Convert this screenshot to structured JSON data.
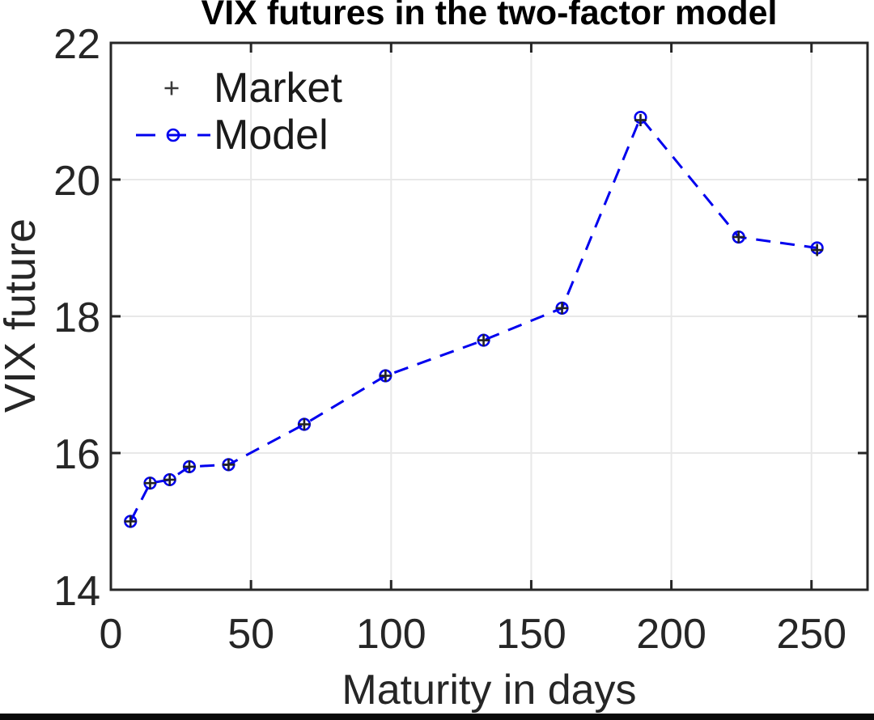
{
  "chart_data": {
    "type": "line",
    "title": "VIX futures in the two-factor model",
    "xlabel": "Maturity in days",
    "ylabel": "VIX future",
    "xlim": [
      0,
      270
    ],
    "ylim": [
      14,
      22
    ],
    "xticks": [
      0,
      50,
      100,
      150,
      200,
      250
    ],
    "yticks": [
      14,
      16,
      18,
      20,
      22
    ],
    "grid": true,
    "legend_position": "upper-left-inside",
    "x": [
      7,
      14,
      21,
      28,
      42,
      69,
      98,
      133,
      161,
      189,
      224,
      252
    ],
    "series": [
      {
        "name": "Market",
        "style": "scatter",
        "marker": "plus",
        "color": "#222222",
        "values": [
          15.0,
          15.56,
          15.61,
          15.8,
          15.83,
          16.42,
          17.13,
          17.65,
          18.12,
          20.87,
          19.16,
          18.97
        ]
      },
      {
        "name": "Model",
        "style": "dashed-line",
        "marker": "circle",
        "color": "#0000EE",
        "values": [
          15.0,
          15.56,
          15.61,
          15.8,
          15.83,
          16.42,
          17.13,
          17.65,
          18.12,
          20.91,
          19.16,
          19.0
        ]
      }
    ],
    "colors": {
      "grid": "#e8e8e8",
      "axis": "#262626",
      "tick_label": "#262626",
      "title": "#000000",
      "model_blue": "#0000EE",
      "market_black": "#222222"
    }
  }
}
